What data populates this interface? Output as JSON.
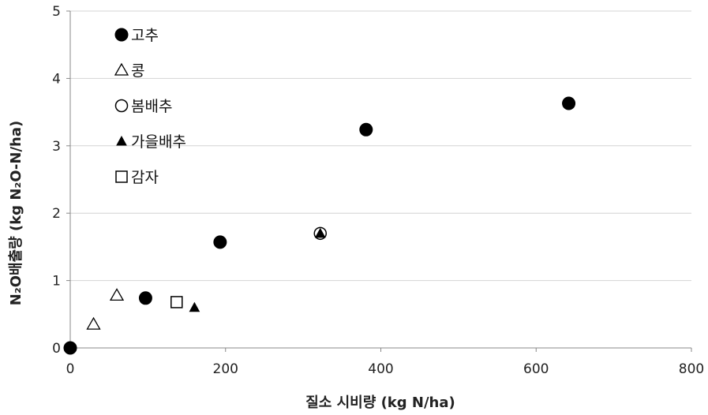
{
  "chart_data": {
    "type": "scatter",
    "title": "",
    "xlabel": "질소 시비량 (kg N/ha)",
    "ylabel": "N₂O배출량 (kg N₂O-N/ha)",
    "xlim": [
      0,
      800
    ],
    "ylim": [
      0,
      5
    ],
    "xticks": [
      "0",
      "200",
      "400",
      "600",
      "800"
    ],
    "yticks": [
      "0",
      "1",
      "2",
      "3",
      "4",
      "5"
    ],
    "grid": "horizontal",
    "legend_position": "top-left",
    "series": [
      {
        "name": "고추",
        "marker": "filled-circle",
        "color": "#000000",
        "x": [
          0,
          97,
          193,
          381,
          642
        ],
        "y": [
          0,
          0.74,
          1.57,
          3.24,
          3.63
        ]
      },
      {
        "name": "콩",
        "marker": "open-triangle",
        "color": "#000000",
        "x": [
          30,
          60
        ],
        "y": [
          0.35,
          0.78
        ]
      },
      {
        "name": "봄배추",
        "marker": "open-circle",
        "color": "#000000",
        "x": [
          322,
          642
        ],
        "y": [
          1.7,
          3.63
        ]
      },
      {
        "name": "가을배추",
        "marker": "filled-triangle",
        "color": "#000000",
        "x": [
          160,
          322,
          642
        ],
        "y": [
          0.6,
          1.7,
          3.63
        ]
      },
      {
        "name": "감자",
        "marker": "open-square",
        "color": "#000000",
        "x": [
          137
        ],
        "y": [
          0.68
        ]
      }
    ]
  }
}
